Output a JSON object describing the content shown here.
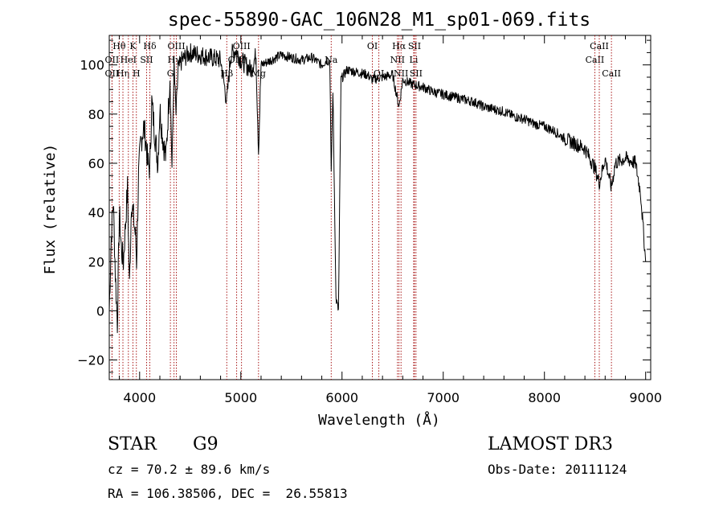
{
  "chart_data": {
    "type": "line",
    "title": "spec-55890-GAC_106N28_M1_sp01-069.fits",
    "xlabel": "Wavelength (Å)",
    "ylabel": "Flux (relative)",
    "xlim": [
      3700,
      9050
    ],
    "ylim": [
      -28,
      112
    ],
    "xticks": [
      4000,
      5000,
      6000,
      7000,
      8000,
      9000
    ],
    "xtick_labels": [
      "4000",
      "5000",
      "6000",
      "7000",
      "8000",
      "9000"
    ],
    "yticks": [
      -20,
      0,
      20,
      40,
      60,
      80,
      100
    ],
    "ytick_labels": [
      "−20",
      "0",
      "20",
      "40",
      "60",
      "80",
      "100"
    ],
    "series": [
      {
        "name": "spectrum",
        "x": [
          3700,
          3720,
          3740,
          3760,
          3780,
          3800,
          3820,
          3840,
          3860,
          3880,
          3900,
          3920,
          3940,
          3960,
          3970,
          3990,
          4010,
          4040,
          4060,
          4080,
          4101,
          4120,
          4150,
          4180,
          4200,
          4230,
          4260,
          4300,
          4320,
          4340,
          4360,
          4380,
          4420,
          4500,
          4600,
          4700,
          4800,
          4861,
          4900,
          4950,
          5000,
          5100,
          5150,
          5175,
          5200,
          5300,
          5400,
          5500,
          5600,
          5700,
          5800,
          5850,
          5880,
          5893,
          5910,
          5940,
          5965,
          5990,
          6050,
          6150,
          6250,
          6300,
          6400,
          6500,
          6563,
          6600,
          6700,
          6800,
          6900,
          7000,
          7100,
          7200,
          7300,
          7400,
          7500,
          7600,
          7700,
          7800,
          7900,
          8000,
          8100,
          8200,
          8300,
          8400,
          8498,
          8542,
          8600,
          8662,
          8700,
          8800,
          8900,
          8950,
          9000
        ],
        "y": [
          0,
          30,
          45,
          15,
          -5,
          40,
          25,
          20,
          35,
          50,
          10,
          45,
          38,
          30,
          20,
          55,
          68,
          75,
          70,
          60,
          58,
          85,
          72,
          60,
          82,
          70,
          62,
          95,
          58,
          100,
          80,
          98,
          102,
          105,
          104,
          103,
          102,
          85,
          104,
          106,
          102,
          98,
          104,
          65,
          100,
          102,
          104,
          103,
          102,
          103,
          100,
          102,
          101,
          55,
          90,
          5,
          0,
          94,
          98,
          97,
          96,
          94,
          95,
          96,
          83,
          94,
          92,
          91,
          89,
          88,
          87,
          86,
          85,
          83,
          82,
          81,
          79,
          78,
          76,
          75,
          73,
          70,
          68,
          66,
          58,
          52,
          62,
          50,
          60,
          62,
          60,
          48,
          20
        ]
      }
    ],
    "lines": [
      {
        "name": "Hθ",
        "x": 3798,
        "row": 0
      },
      {
        "name": "OII",
        "x": 3727,
        "row": 1
      },
      {
        "name": "OII",
        "x": 3727,
        "row": 2
      },
      {
        "name": "Hη",
        "x": 3835,
        "row": 2
      },
      {
        "name": "HeI",
        "x": 3889,
        "row": 1
      },
      {
        "name": "K",
        "x": 3934,
        "row": 0
      },
      {
        "name": "H",
        "x": 3968,
        "row": 2
      },
      {
        "name": "SII",
        "x": 4069,
        "row": 1
      },
      {
        "name": "Hδ",
        "x": 4101,
        "row": 0
      },
      {
        "name": "OIII",
        "x": 4363,
        "row": 0
      },
      {
        "name": "Hγ",
        "x": 4340,
        "row": 1
      },
      {
        "name": "G",
        "x": 4304,
        "row": 2
      },
      {
        "name": "Hβ",
        "x": 4861,
        "row": 2
      },
      {
        "name": "OIII",
        "x": 4959,
        "row": 1
      },
      {
        "name": "OIII",
        "x": 5007,
        "row": 0
      },
      {
        "name": "Mg",
        "x": 5175,
        "row": 2
      },
      {
        "name": "Na",
        "x": 5893,
        "row": 1
      },
      {
        "name": "OI",
        "x": 6300,
        "row": 0
      },
      {
        "name": "OI",
        "x": 6364,
        "row": 2
      },
      {
        "name": "NII",
        "x": 6548,
        "row": 1
      },
      {
        "name": "Hα",
        "x": 6563,
        "row": 0
      },
      {
        "name": "NII",
        "x": 6583,
        "row": 2
      },
      {
        "name": "SII",
        "x": 6716,
        "row": 0
      },
      {
        "name": "Li",
        "x": 6708,
        "row": 1
      },
      {
        "name": "SII",
        "x": 6731,
        "row": 2
      },
      {
        "name": "CaII",
        "x": 8498,
        "row": 1
      },
      {
        "name": "CaII",
        "x": 8542,
        "row": 0
      },
      {
        "name": "CaII",
        "x": 8662,
        "row": 2
      }
    ]
  },
  "info": {
    "class": "STAR",
    "subclass": "G9",
    "survey": "LAMOST DR3",
    "cz": "cz = 70.2 ± 89.6 km/s",
    "obsdate": "Obs-Date: 20111124",
    "coords": "RA = 106.38506, DEC =  26.55813"
  }
}
